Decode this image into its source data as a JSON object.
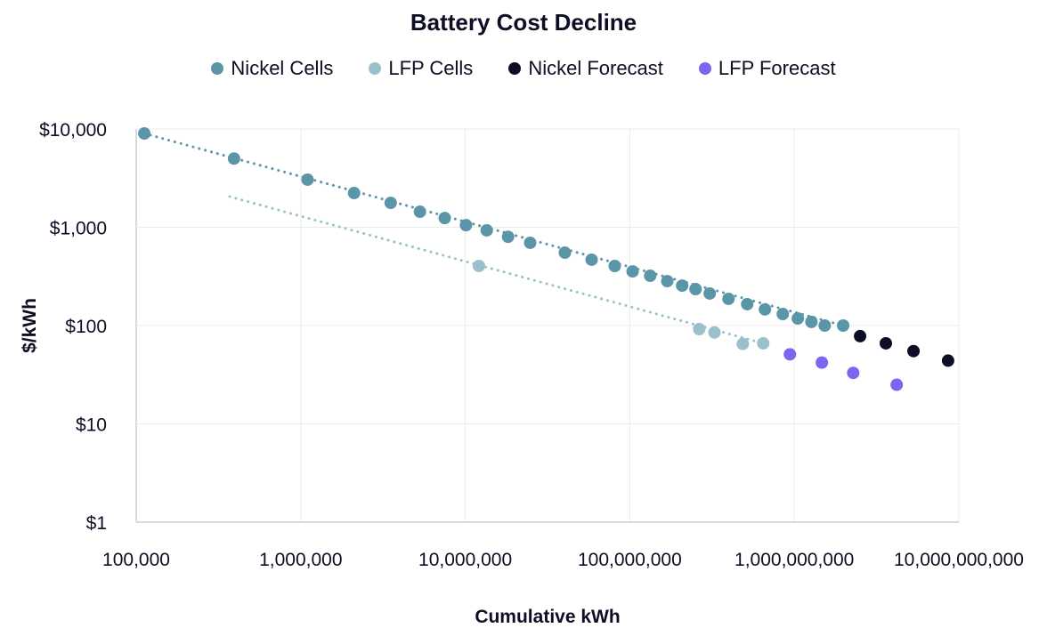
{
  "chart_data": {
    "type": "scatter",
    "title": "Battery Cost Decline",
    "xlabel": "Cumulative kWh",
    "ylabel": "$/kWh",
    "xscale": "log",
    "yscale": "log",
    "xlim": [
      100000,
      10000000000
    ],
    "ylim": [
      1,
      10000
    ],
    "grid": true,
    "legend_position": "top",
    "x_ticks": [
      100000,
      1000000,
      10000000,
      100000000,
      1000000000,
      10000000000
    ],
    "x_tick_labels": [
      "100,000",
      "1,000,000",
      "10,000,000",
      "100,000,000",
      "1,000,000,000",
      "10,000,000,000"
    ],
    "y_ticks": [
      10000,
      1000,
      100,
      10,
      1
    ],
    "y_tick_labels": [
      "$10,000",
      "$1,000",
      "$100",
      "$10",
      "$1"
    ],
    "series": [
      {
        "name": "Nickel Cells",
        "color": "#5b96a8",
        "trendline": true,
        "points": [
          [
            112000,
            9000
          ],
          [
            393000,
            5000
          ],
          [
            1100000,
            3050
          ],
          [
            2110000,
            2230
          ],
          [
            3520000,
            1770
          ],
          [
            5300000,
            1440
          ],
          [
            7500000,
            1240
          ],
          [
            10100000,
            1050
          ],
          [
            13500000,
            930
          ],
          [
            18200000,
            800
          ],
          [
            24800000,
            695
          ],
          [
            40300000,
            552
          ],
          [
            58600000,
            468
          ],
          [
            81000000,
            404
          ],
          [
            104000000,
            356
          ],
          [
            133000000,
            321
          ],
          [
            169000000,
            283
          ],
          [
            208000000,
            255
          ],
          [
            251000000,
            235
          ],
          [
            306000000,
            212
          ],
          [
            398000000,
            187
          ],
          [
            517000000,
            165
          ],
          [
            663000000,
            146
          ],
          [
            851000000,
            131
          ],
          [
            1050000000,
            118
          ],
          [
            1270000000,
            109
          ],
          [
            1530000000,
            100
          ],
          [
            1980000000,
            100
          ]
        ]
      },
      {
        "name": "LFP Cells",
        "color": "#9bc0cb",
        "trendline": true,
        "trendline_range": [
          [
            370000,
            2050
          ],
          [
            647000000,
            66
          ]
        ],
        "points": [
          [
            12100000,
            404
          ],
          [
            264000000,
            92
          ],
          [
            327000000,
            85
          ],
          [
            486000000,
            65
          ],
          [
            647000000,
            66
          ]
        ]
      },
      {
        "name": "Nickel Forecast",
        "color": "#0d0d24",
        "trendline": false,
        "points": [
          [
            2510000000,
            78
          ],
          [
            3600000000,
            66
          ],
          [
            5300000000,
            55
          ],
          [
            8600000000,
            44
          ]
        ]
      },
      {
        "name": "LFP Forecast",
        "color": "#7b66f0",
        "trendline": false,
        "points": [
          [
            940000000,
            51
          ],
          [
            1470000000,
            42
          ],
          [
            2280000000,
            33
          ],
          [
            4190000000,
            25
          ]
        ]
      }
    ]
  }
}
